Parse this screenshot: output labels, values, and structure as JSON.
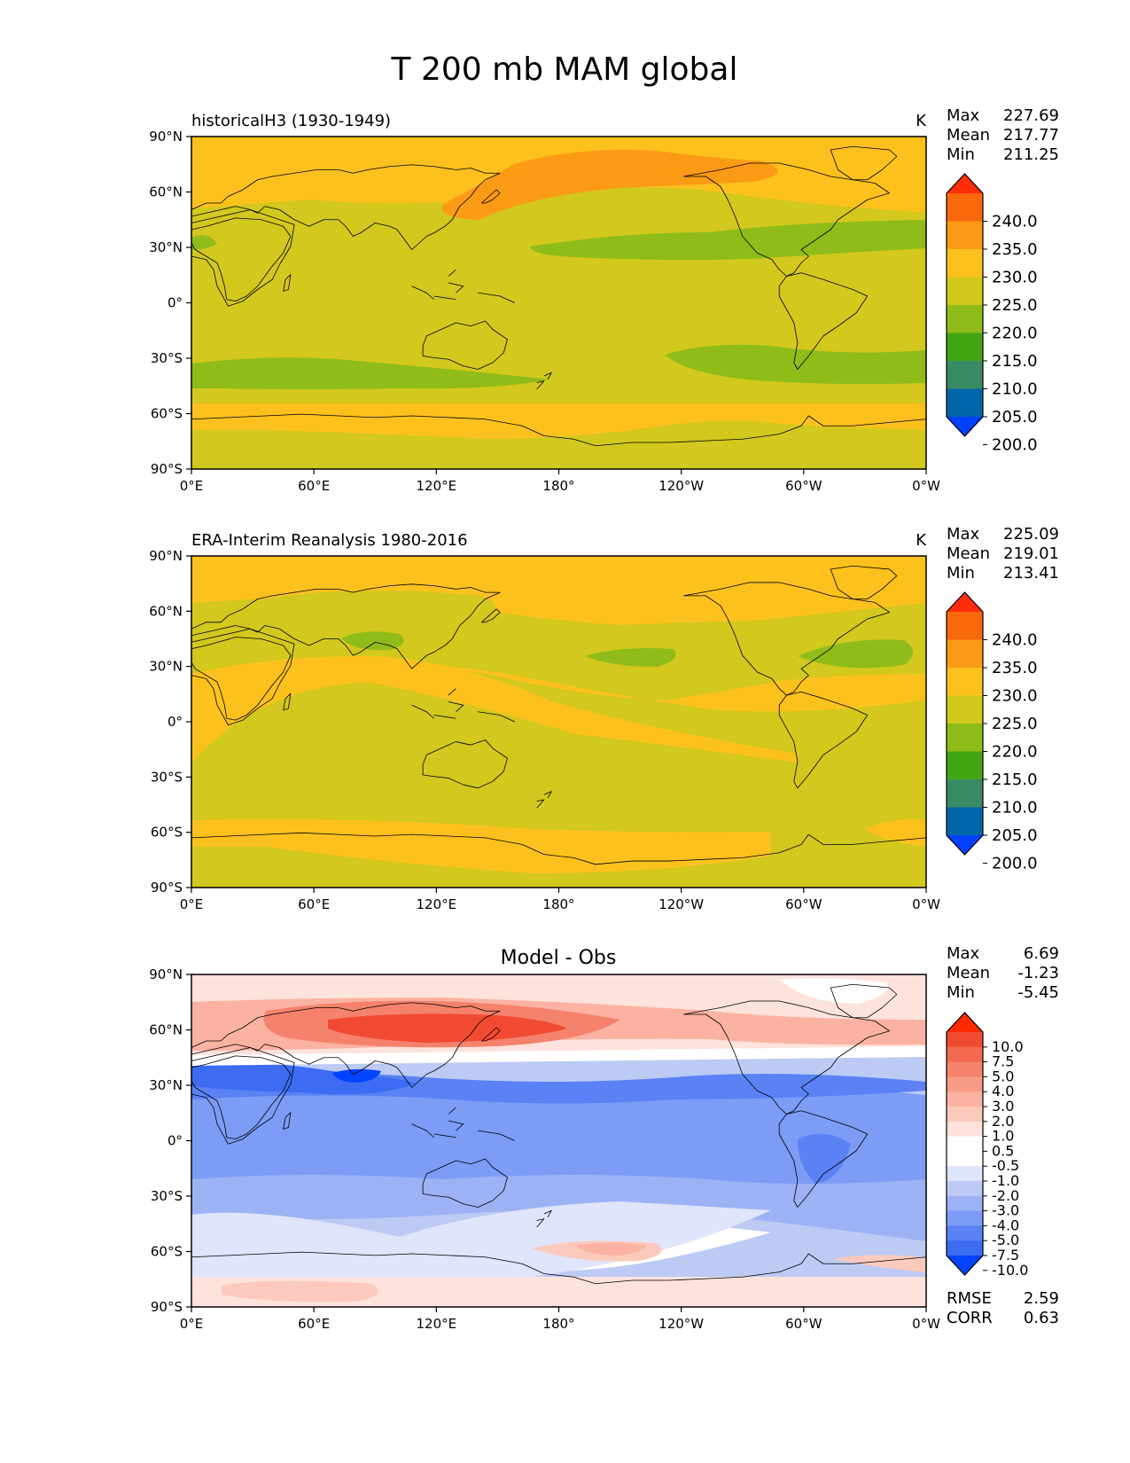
{
  "figure_title": "T 200 mb MAM global",
  "colors": {
    "abs_levels": [
      "#0040ff",
      "#0066aa",
      "#3a8a66",
      "#44a614",
      "#8fbc18",
      "#d2c81e",
      "#fdc11e",
      "#fb9a15",
      "#f9680d",
      "#ff2c0a"
    ],
    "diff_levels": [
      "#0044ff",
      "#3d6cf3",
      "#5a82f4",
      "#7c9cf6",
      "#9db1f5",
      "#bccaf4",
      "#dfe5fb",
      "#ffffff",
      "#ffffff",
      "#fde3dc",
      "#fccabd",
      "#fbb2a2",
      "#f79a86",
      "#f5826c",
      "#f36a50",
      "#f14a32",
      "#ff2a00"
    ],
    "coast": "#000000"
  },
  "chart_data": [
    {
      "type": "heatmap",
      "title": "historicalH3 (1930-1949)",
      "units": "K",
      "stats": {
        "max_label": "Max",
        "max": "227.69",
        "mean_label": "Mean",
        "mean": "217.77",
        "min_label": "Min",
        "min": "211.25"
      },
      "colorbar_ticks": [
        "240.0",
        "235.0",
        "230.0",
        "225.0",
        "220.0",
        "215.0",
        "210.0",
        "205.0",
        "200.0"
      ],
      "xticks": [
        "0°E",
        "60°E",
        "120°E",
        "180°",
        "120°W",
        "60°W",
        "0°W"
      ],
      "yticks": [
        "90°N",
        "60°N",
        "30°N",
        "0°",
        "30°S",
        "60°S",
        "90°S"
      ],
      "xlim": [
        0,
        360
      ],
      "ylim": [
        -90,
        90
      ],
      "vmin": 200,
      "vmax": 240
    },
    {
      "type": "heatmap",
      "title": "ERA-Interim Reanalysis 1980-2016",
      "units": "K",
      "stats": {
        "max_label": "Max",
        "max": "225.09",
        "mean_label": "Mean",
        "mean": "219.01",
        "min_label": "Min",
        "min": "213.41"
      },
      "colorbar_ticks": [
        "240.0",
        "235.0",
        "230.0",
        "225.0",
        "220.0",
        "215.0",
        "210.0",
        "205.0",
        "200.0"
      ],
      "xticks": [
        "0°E",
        "60°E",
        "120°E",
        "180°",
        "120°W",
        "60°W",
        "0°W"
      ],
      "yticks": [
        "90°N",
        "60°N",
        "30°N",
        "0°",
        "30°S",
        "60°S",
        "90°S"
      ],
      "xlim": [
        0,
        360
      ],
      "ylim": [
        -90,
        90
      ],
      "vmin": 200,
      "vmax": 240
    },
    {
      "type": "heatmap",
      "title": "Model - Obs",
      "units": "",
      "stats": {
        "max_label": "Max",
        "max": "6.69",
        "mean_label": "Mean",
        "mean": "-1.23",
        "min_label": "Min",
        "min": "-5.45"
      },
      "colorbar_ticks": [
        "10.0",
        "7.5",
        "5.0",
        "4.0",
        "3.0",
        "2.0",
        "1.0",
        "0.5",
        "-0.5",
        "-1.0",
        "-2.0",
        "-3.0",
        "-4.0",
        "-5.0",
        "-7.5",
        "-10.0"
      ],
      "xticks": [
        "0°E",
        "60°E",
        "120°E",
        "180°",
        "120°W",
        "60°W",
        "0°W"
      ],
      "yticks": [
        "90°N",
        "60°N",
        "30°N",
        "0°",
        "30°S",
        "60°S",
        "90°S"
      ],
      "xlim": [
        0,
        360
      ],
      "ylim": [
        -90,
        90
      ],
      "vmin": -10,
      "vmax": 10,
      "footer_stats": {
        "rmse_label": "RMSE",
        "rmse": "2.59",
        "corr_label": "CORR",
        "corr": "0.63"
      }
    }
  ]
}
